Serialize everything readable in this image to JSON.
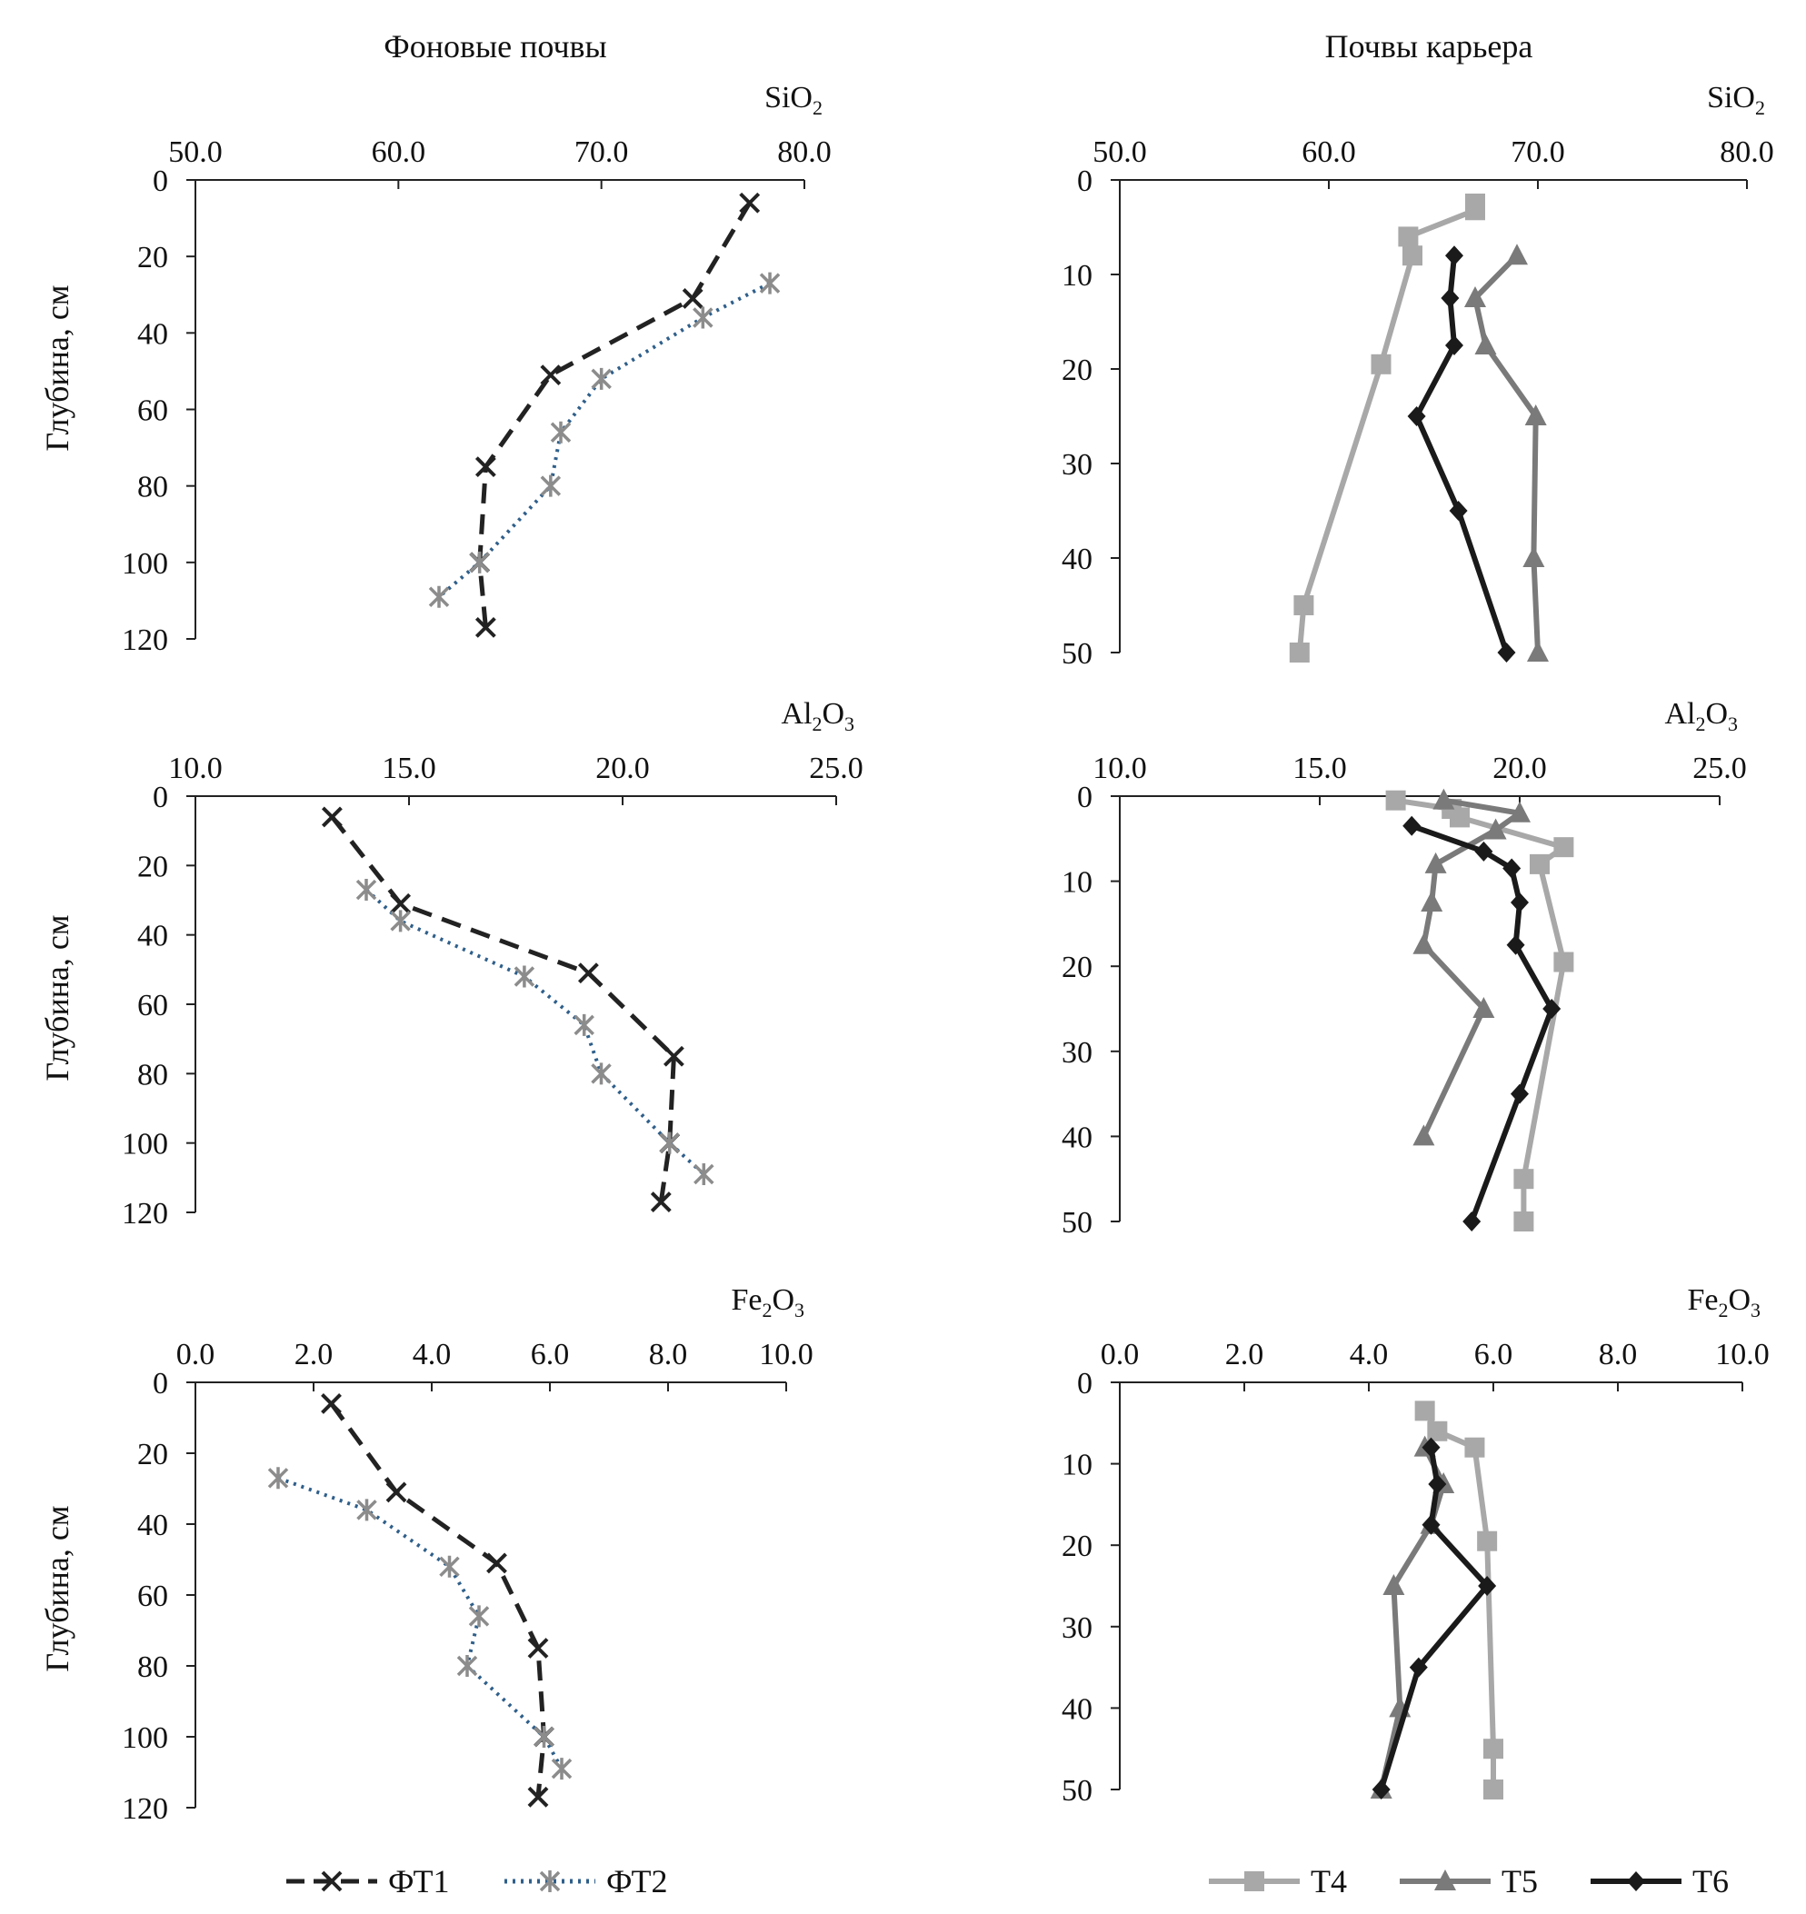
{
  "figure": {
    "column_titles": [
      "Фоновые почвы",
      "Почвы карьера"
    ],
    "y_axis_label": "Глубина, см"
  },
  "legend": {
    "background": [
      {
        "name": "ФТ1",
        "color": "#222222",
        "style": "dashed",
        "marker": "x"
      },
      {
        "name": "ФТ2",
        "color": "#2f5f8a",
        "style": "dotted",
        "marker": "star"
      }
    ],
    "quarry": [
      {
        "name": "Т4",
        "color": "#a8a8a8",
        "style": "solid",
        "marker": "square"
      },
      {
        "name": "Т5",
        "color": "#7a7a7a",
        "style": "solid",
        "marker": "triangle"
      },
      {
        "name": "Т6",
        "color": "#1a1a1a",
        "style": "solid",
        "marker": "diamond"
      }
    ]
  },
  "chart_data": [
    {
      "type": "line",
      "group": "background",
      "oxide": {
        "base": "SiO",
        "sub": "2",
        "tail": ""
      },
      "xlim": [
        50,
        80
      ],
      "xticks": [
        50,
        60,
        70,
        80
      ],
      "ylim": [
        0,
        120
      ],
      "yticks": [
        0,
        20,
        40,
        60,
        80,
        100,
        120
      ],
      "ylabel": "Глубина, см",
      "series": [
        {
          "name": "ФТ1",
          "points": [
            [
              77.3,
              6
            ],
            [
              74.5,
              31
            ],
            [
              67.5,
              51
            ],
            [
              64.3,
              75
            ],
            [
              64.0,
              100
            ],
            [
              64.3,
              117
            ]
          ]
        },
        {
          "name": "ФТ2",
          "points": [
            [
              78.3,
              27
            ],
            [
              75.0,
              36
            ],
            [
              70.0,
              52
            ],
            [
              68.0,
              66
            ],
            [
              67.5,
              80
            ],
            [
              64.0,
              100
            ],
            [
              62.0,
              109
            ]
          ]
        }
      ]
    },
    {
      "type": "line",
      "group": "quarry",
      "oxide": {
        "base": "SiO",
        "sub": "2",
        "tail": ""
      },
      "xlim": [
        50,
        80
      ],
      "xticks": [
        50,
        60,
        70,
        80
      ],
      "ylim": [
        0,
        50
      ],
      "yticks": [
        0,
        10,
        20,
        30,
        40,
        50
      ],
      "ylabel": "",
      "series": [
        {
          "name": "Т4",
          "points": [
            [
              67.0,
              2.5
            ],
            [
              67.0,
              3.2
            ],
            [
              63.8,
              6
            ],
            [
              64.0,
              8
            ],
            [
              62.5,
              19.5
            ],
            [
              58.8,
              45
            ],
            [
              58.6,
              50
            ]
          ]
        },
        {
          "name": "Т5",
          "points": [
            [
              69.0,
              8
            ],
            [
              67.0,
              12.5
            ],
            [
              67.5,
              17.5
            ],
            [
              69.9,
              25
            ],
            [
              69.8,
              40
            ],
            [
              70.0,
              50
            ]
          ]
        },
        {
          "name": "Т6",
          "points": [
            [
              66.0,
              8
            ],
            [
              65.8,
              12.5
            ],
            [
              66.0,
              17.5
            ],
            [
              64.2,
              25
            ],
            [
              66.2,
              35
            ],
            [
              68.5,
              50
            ]
          ]
        }
      ]
    },
    {
      "type": "line",
      "group": "background",
      "oxide": {
        "base": "Al",
        "sub": "2",
        "tail": "O3"
      },
      "xlim": [
        10,
        25
      ],
      "xticks": [
        10,
        15,
        20,
        25
      ],
      "ylim": [
        0,
        120
      ],
      "yticks": [
        0,
        20,
        40,
        60,
        80,
        100,
        120
      ],
      "ylabel": "Глубина, см",
      "series": [
        {
          "name": "ФТ1",
          "points": [
            [
              13.2,
              6
            ],
            [
              14.8,
              31
            ],
            [
              19.2,
              51
            ],
            [
              21.2,
              75
            ],
            [
              21.1,
              100
            ],
            [
              20.9,
              117
            ]
          ]
        },
        {
          "name": "ФТ2",
          "points": [
            [
              14.0,
              27
            ],
            [
              14.8,
              36
            ],
            [
              17.7,
              52
            ],
            [
              19.1,
              66
            ],
            [
              19.5,
              80
            ],
            [
              21.1,
              100
            ],
            [
              21.9,
              109
            ]
          ]
        }
      ]
    },
    {
      "type": "line",
      "group": "quarry",
      "oxide": {
        "base": "Al",
        "sub": "2",
        "tail": "O3"
      },
      "xlim": [
        10,
        25
      ],
      "xticks": [
        10,
        15,
        20,
        25
      ],
      "ylim": [
        0,
        50
      ],
      "yticks": [
        0,
        10,
        20,
        30,
        40,
        50
      ],
      "ylabel": "",
      "series": [
        {
          "name": "Т4",
          "points": [
            [
              16.9,
              0.5
            ],
            [
              18.3,
              1.5
            ],
            [
              18.5,
              2.5
            ],
            [
              21.1,
              6
            ],
            [
              20.5,
              8
            ],
            [
              21.1,
              19.5
            ],
            [
              20.1,
              45
            ],
            [
              20.1,
              50
            ]
          ]
        },
        {
          "name": "Т5",
          "points": [
            [
              18.1,
              0.5
            ],
            [
              20.0,
              2
            ],
            [
              19.4,
              4
            ],
            [
              17.9,
              8
            ],
            [
              17.8,
              12.5
            ],
            [
              17.6,
              17.5
            ],
            [
              19.1,
              25
            ],
            [
              17.6,
              40
            ]
          ]
        },
        {
          "name": "Т6",
          "points": [
            [
              17.3,
              3.5
            ],
            [
              19.1,
              6.5
            ],
            [
              19.8,
              8.5
            ],
            [
              20.0,
              12.5
            ],
            [
              19.9,
              17.5
            ],
            [
              20.8,
              25
            ],
            [
              20.0,
              35
            ],
            [
              18.8,
              50
            ]
          ]
        }
      ]
    },
    {
      "type": "line",
      "group": "background",
      "oxide": {
        "base": "Fe",
        "sub": "2",
        "tail": "O3"
      },
      "xlim": [
        0,
        10
      ],
      "xticks": [
        0,
        2,
        4,
        6,
        8,
        10
      ],
      "ylim": [
        0,
        120
      ],
      "yticks": [
        0,
        20,
        40,
        60,
        80,
        100,
        120
      ],
      "ylabel": "Глубина, см",
      "series": [
        {
          "name": "ФТ1",
          "points": [
            [
              2.3,
              6
            ],
            [
              3.4,
              31
            ],
            [
              5.1,
              51
            ],
            [
              5.8,
              75
            ],
            [
              5.9,
              100
            ],
            [
              5.8,
              117
            ]
          ]
        },
        {
          "name": "ФТ2",
          "points": [
            [
              1.4,
              27
            ],
            [
              2.9,
              36
            ],
            [
              4.3,
              52
            ],
            [
              4.8,
              66
            ],
            [
              4.6,
              80
            ],
            [
              5.9,
              100
            ],
            [
              6.2,
              109
            ]
          ]
        }
      ]
    },
    {
      "type": "line",
      "group": "quarry",
      "oxide": {
        "base": "Fe",
        "sub": "2",
        "tail": "O3"
      },
      "xlim": [
        0,
        10
      ],
      "xticks": [
        0,
        2,
        4,
        6,
        8,
        10
      ],
      "ylim": [
        0,
        50
      ],
      "yticks": [
        0,
        10,
        20,
        30,
        40,
        50
      ],
      "ylabel": "",
      "series": [
        {
          "name": "Т4",
          "points": [
            [
              4.9,
              3.5
            ],
            [
              5.1,
              6
            ],
            [
              5.7,
              8
            ],
            [
              5.9,
              19.5
            ],
            [
              6.0,
              45
            ],
            [
              6.0,
              50
            ]
          ]
        },
        {
          "name": "Т5",
          "points": [
            [
              4.9,
              8
            ],
            [
              5.2,
              12.5
            ],
            [
              5.0,
              17.5
            ],
            [
              4.4,
              25
            ],
            [
              4.5,
              40
            ],
            [
              4.2,
              50
            ]
          ]
        },
        {
          "name": "Т6",
          "points": [
            [
              5.0,
              8
            ],
            [
              5.1,
              12.5
            ],
            [
              5.0,
              17.5
            ],
            [
              5.9,
              25
            ],
            [
              4.8,
              35
            ],
            [
              4.2,
              50
            ]
          ]
        }
      ]
    }
  ]
}
